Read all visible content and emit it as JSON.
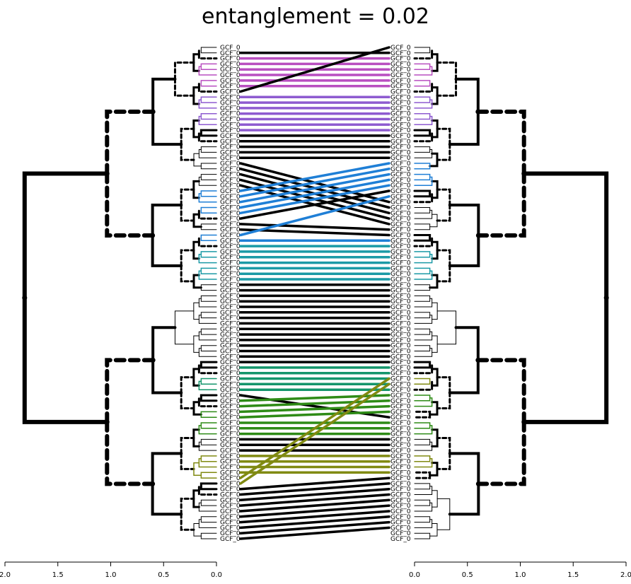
{
  "title": "entanglement = 0.02",
  "chart_data": {
    "type": "tanglegram",
    "title": "entanglement = 0.02",
    "leaf_count": 90,
    "leaf_label": "GCF_0",
    "left_axis": {
      "range": [
        2.0,
        0.0
      ],
      "ticks": [
        "2.0",
        "1.5",
        "1.0",
        "0.5",
        "0.0"
      ]
    },
    "right_axis": {
      "range": [
        0.0,
        2.0
      ],
      "ticks": [
        "0.0",
        "0.5",
        "1.0",
        "1.5",
        "2.0"
      ]
    },
    "cluster_colors": [
      "#000000",
      "#b94fc0",
      "#8e5bd0",
      "#1f7fd6",
      "#1b9aa6",
      "#14956b",
      "#2e8b16",
      "#808a12",
      "#b88a2a",
      "#c0621c",
      "#c9506b"
    ],
    "connections": [
      [
        1,
        1,
        0
      ],
      [
        2,
        2,
        1
      ],
      [
        3,
        3,
        1
      ],
      [
        4,
        4,
        1
      ],
      [
        5,
        5,
        1
      ],
      [
        6,
        6,
        1
      ],
      [
        7,
        7,
        1
      ],
      [
        8,
        0,
        0
      ],
      [
        9,
        9,
        2
      ],
      [
        10,
        10,
        2
      ],
      [
        11,
        11,
        2
      ],
      [
        12,
        12,
        2
      ],
      [
        13,
        13,
        2
      ],
      [
        14,
        14,
        2
      ],
      [
        15,
        15,
        2
      ],
      [
        16,
        16,
        0
      ],
      [
        17,
        17,
        0
      ],
      [
        18,
        18,
        0
      ],
      [
        19,
        19,
        0
      ],
      [
        20,
        20,
        0
      ],
      [
        21,
        28,
        0
      ],
      [
        22,
        29,
        0
      ],
      [
        23,
        30,
        0
      ],
      [
        24,
        31,
        0
      ],
      [
        25,
        32,
        0
      ],
      [
        26,
        21,
        3
      ],
      [
        27,
        22,
        3
      ],
      [
        28,
        23,
        3
      ],
      [
        29,
        24,
        3
      ],
      [
        30,
        25,
        3
      ],
      [
        31,
        26,
        0
      ],
      [
        32,
        33,
        0
      ],
      [
        33,
        34,
        0
      ],
      [
        34,
        27,
        3
      ],
      [
        35,
        35,
        3
      ],
      [
        36,
        36,
        4
      ],
      [
        37,
        37,
        4
      ],
      [
        38,
        38,
        4
      ],
      [
        39,
        39,
        4
      ],
      [
        40,
        40,
        4
      ],
      [
        41,
        41,
        4
      ],
      [
        42,
        42,
        4
      ],
      [
        43,
        43,
        0
      ],
      [
        44,
        44,
        0
      ],
      [
        45,
        45,
        0
      ],
      [
        46,
        46,
        0
      ],
      [
        47,
        47,
        0
      ],
      [
        48,
        48,
        0
      ],
      [
        49,
        49,
        0
      ],
      [
        50,
        50,
        0
      ],
      [
        51,
        51,
        0
      ],
      [
        52,
        52,
        0
      ],
      [
        53,
        53,
        0
      ],
      [
        54,
        54,
        0
      ],
      [
        55,
        55,
        0
      ],
      [
        56,
        56,
        0
      ],
      [
        57,
        57,
        0
      ],
      [
        58,
        58,
        5
      ],
      [
        59,
        59,
        5
      ],
      [
        60,
        60,
        5
      ],
      [
        61,
        61,
        5
      ],
      [
        62,
        62,
        5
      ],
      [
        63,
        67,
        0
      ],
      [
        64,
        63,
        6
      ],
      [
        65,
        64,
        6
      ],
      [
        66,
        65,
        6
      ],
      [
        67,
        66,
        6
      ],
      [
        68,
        68,
        6
      ],
      [
        69,
        69,
        6
      ],
      [
        70,
        70,
        6
      ],
      [
        71,
        71,
        0
      ],
      [
        72,
        72,
        0
      ],
      [
        73,
        73,
        0
      ],
      [
        74,
        74,
        7
      ],
      [
        75,
        75,
        7
      ],
      [
        76,
        76,
        7
      ],
      [
        77,
        77,
        7
      ],
      [
        78,
        60,
        7
      ],
      [
        79,
        61,
        7
      ],
      [
        80,
        78,
        0
      ],
      [
        81,
        79,
        0
      ],
      [
        82,
        80,
        0
      ],
      [
        83,
        81,
        0
      ],
      [
        84,
        82,
        0
      ],
      [
        85,
        83,
        0
      ],
      [
        86,
        84,
        0
      ],
      [
        87,
        85,
        0
      ],
      [
        88,
        86,
        0
      ],
      [
        89,
        87,
        0
      ]
    ]
  }
}
